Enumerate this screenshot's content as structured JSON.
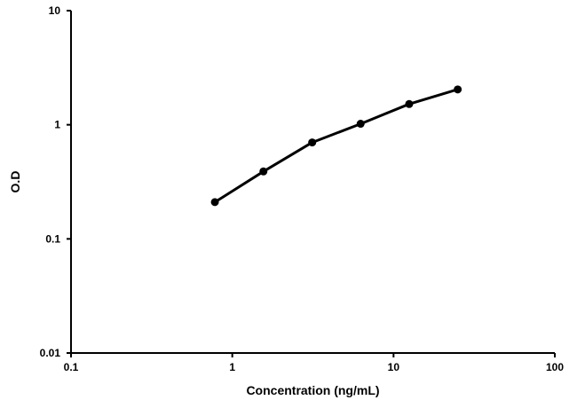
{
  "chart_data": {
    "type": "line",
    "title": "",
    "xlabel": "Concentration (ng/mL)",
    "ylabel": "O.D",
    "xscale": "log",
    "yscale": "log",
    "xlim": [
      0.1,
      100
    ],
    "ylim": [
      0.01,
      10
    ],
    "x_ticks": [
      "0.1",
      "1",
      "10",
      "100"
    ],
    "y_ticks": [
      "0.01",
      "0.1",
      "1",
      "10"
    ],
    "grid": false,
    "legend": "none",
    "series": [
      {
        "x": [
          0.78,
          1.56,
          3.13,
          6.25,
          12.5,
          25
        ],
        "y": [
          0.21,
          0.39,
          0.7,
          1.02,
          1.52,
          2.04
        ]
      }
    ]
  }
}
